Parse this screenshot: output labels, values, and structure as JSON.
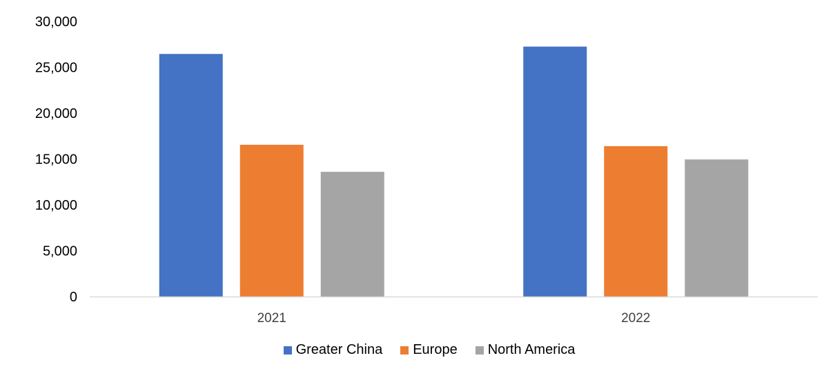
{
  "chart_data": {
    "type": "bar",
    "categories": [
      "2021",
      "2022"
    ],
    "series": [
      {
        "name": "Greater China",
        "values": [
          26450,
          27250
        ],
        "color": "#4472C4"
      },
      {
        "name": "Europe",
        "values": [
          16550,
          16400
        ],
        "color": "#ED7D31"
      },
      {
        "name": "North America",
        "values": [
          13600,
          14950
        ],
        "color": "#A5A5A5"
      }
    ],
    "ylim": [
      0,
      30000
    ],
    "yticks": [
      0,
      5000,
      10000,
      15000,
      20000,
      25000,
      30000
    ],
    "ytick_labels": [
      "0",
      "5,000",
      "10,000",
      "15,000",
      "20,000",
      "25,000",
      "30,000"
    ],
    "grid": false,
    "legend_position": "bottom"
  }
}
